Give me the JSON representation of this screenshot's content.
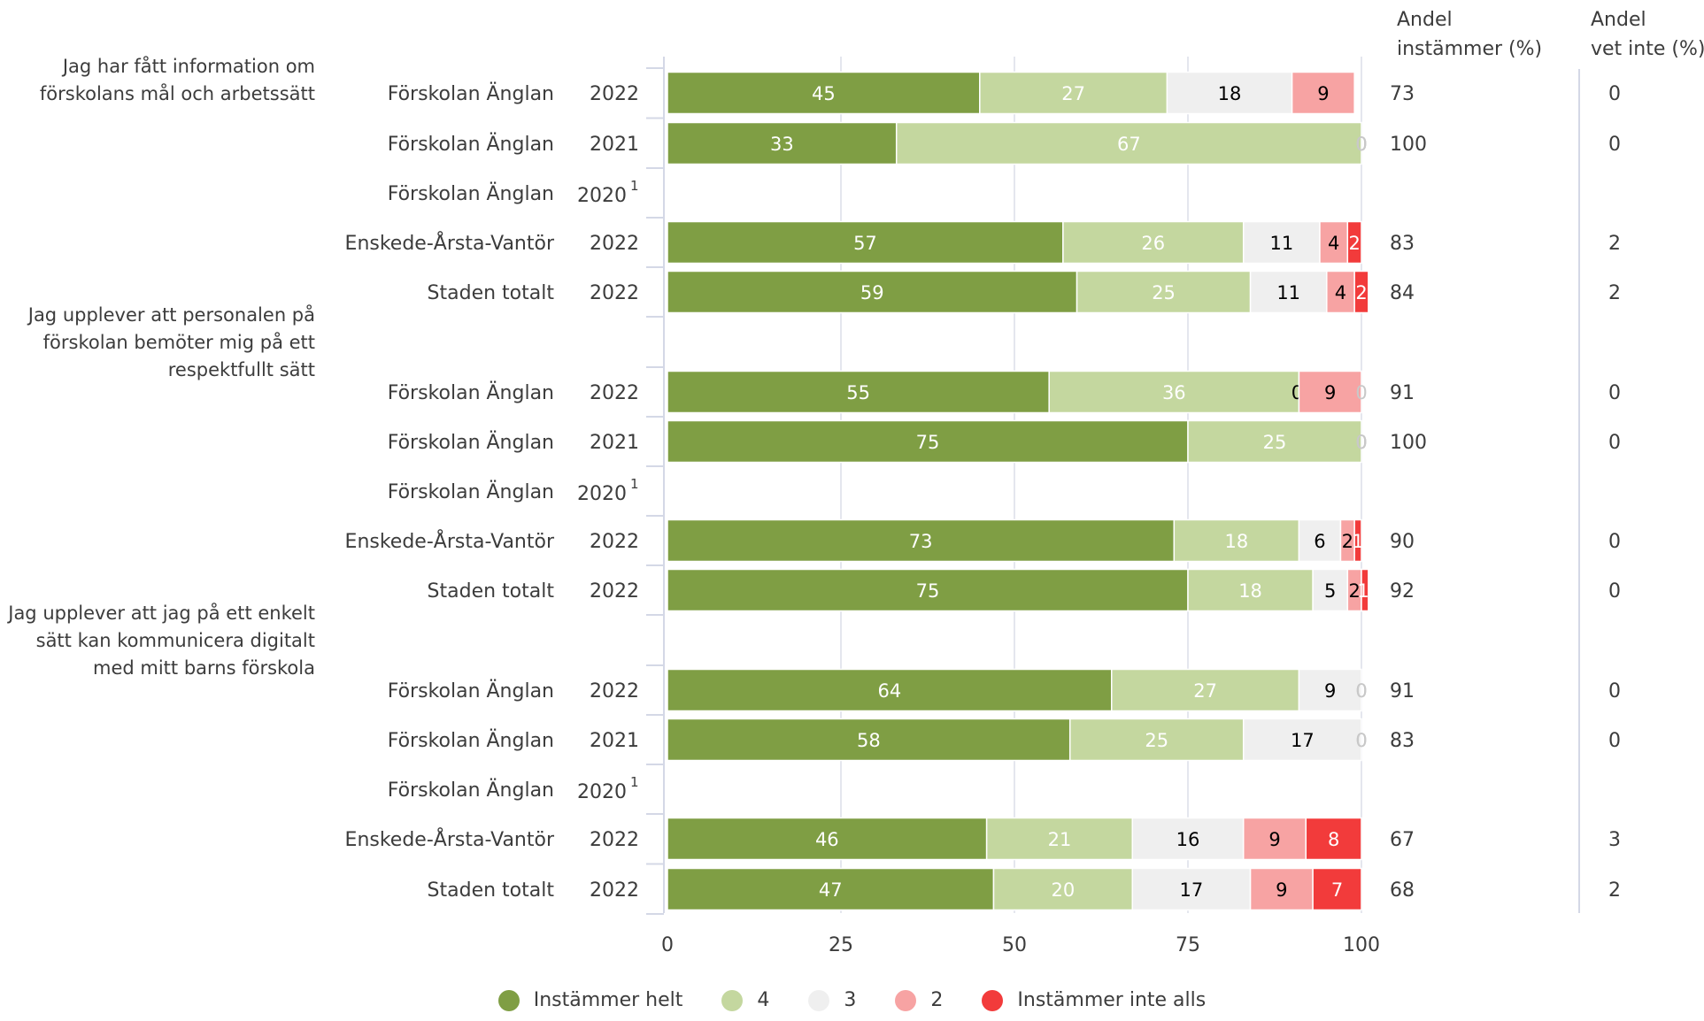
{
  "headers": {
    "andel_instammer": [
      "Andel",
      "instämmer (%)"
    ],
    "andel_vet_inte": [
      "Andel",
      "vet inte (%)"
    ]
  },
  "chart_data": {
    "type": "bar",
    "orientation": "horizontal",
    "stacked": true,
    "xlim": [
      0,
      100
    ],
    "xticks": [
      0,
      25,
      50,
      75,
      100
    ],
    "grid": true,
    "legend_position": "bottom",
    "series": [
      {
        "name": "Instämmer helt",
        "color": "#7f9e44"
      },
      {
        "name": "4",
        "color": "#c4d79f"
      },
      {
        "name": "3",
        "color": "#efefef"
      },
      {
        "name": "2",
        "color": "#f7a3a3"
      },
      {
        "name": "Instämmer inte alls",
        "color": "#f23b3b"
      }
    ],
    "groups": [
      {
        "question": [
          "Jag har fått information om",
          "förskolans mål och arbetssätt"
        ],
        "rows": [
          {
            "label": "Förskolan Änglan",
            "year": "2022",
            "footnote": "",
            "values": [
              45,
              27,
              18,
              9,
              0
            ],
            "andel_instammer": "73",
            "andel_vet_inte": "0"
          },
          {
            "label": "Förskolan Änglan",
            "year": "2021",
            "footnote": "",
            "values": [
              33,
              67,
              0,
              0,
              0
            ],
            "andel_instammer": "100",
            "andel_vet_inte": "0"
          },
          {
            "label": "Förskolan Änglan",
            "year": "2020",
            "footnote": "1",
            "values": null,
            "andel_instammer": "",
            "andel_vet_inte": ""
          },
          {
            "label": "Enskede-Årsta-Vantör",
            "year": "2022",
            "footnote": "",
            "values": [
              57,
              26,
              11,
              4,
              2
            ],
            "andel_instammer": "83",
            "andel_vet_inte": "2"
          },
          {
            "label": "Staden totalt",
            "year": "2022",
            "footnote": "",
            "values": [
              59,
              25,
              11,
              4,
              2
            ],
            "andel_instammer": "84",
            "andel_vet_inte": "2"
          }
        ]
      },
      {
        "question": [
          "Jag upplever att personalen på",
          "förskolan bemöter mig på ett",
          "respektfullt sätt"
        ],
        "rows": [
          {
            "label": "Förskolan Änglan",
            "year": "2022",
            "footnote": "",
            "values": [
              55,
              36,
              0,
              9,
              0
            ],
            "andel_instammer": "91",
            "andel_vet_inte": "0"
          },
          {
            "label": "Förskolan Änglan",
            "year": "2021",
            "footnote": "",
            "values": [
              75,
              25,
              0,
              0,
              0
            ],
            "andel_instammer": "100",
            "andel_vet_inte": "0"
          },
          {
            "label": "Förskolan Änglan",
            "year": "2020",
            "footnote": "1",
            "values": null,
            "andel_instammer": "",
            "andel_vet_inte": ""
          },
          {
            "label": "Enskede-Årsta-Vantör",
            "year": "2022",
            "footnote": "",
            "values": [
              73,
              18,
              6,
              2,
              1
            ],
            "andel_instammer": "90",
            "andel_vet_inte": "0"
          },
          {
            "label": "Staden totalt",
            "year": "2022",
            "footnote": "",
            "values": [
              75,
              18,
              5,
              2,
              1
            ],
            "andel_instammer": "92",
            "andel_vet_inte": "0"
          }
        ]
      },
      {
        "question": [
          "Jag upplever att jag på ett enkelt",
          "sätt kan kommunicera digitalt",
          "med mitt barns förskola"
        ],
        "rows": [
          {
            "label": "Förskolan Änglan",
            "year": "2022",
            "footnote": "",
            "values": [
              64,
              27,
              9,
              0,
              0
            ],
            "andel_instammer": "91",
            "andel_vet_inte": "0"
          },
          {
            "label": "Förskolan Änglan",
            "year": "2021",
            "footnote": "",
            "values": [
              58,
              25,
              17,
              0,
              0
            ],
            "andel_instammer": "83",
            "andel_vet_inte": "0"
          },
          {
            "label": "Förskolan Änglan",
            "year": "2020",
            "footnote": "1",
            "values": null,
            "andel_instammer": "",
            "andel_vet_inte": ""
          },
          {
            "label": "Enskede-Årsta-Vantör",
            "year": "2022",
            "footnote": "",
            "values": [
              46,
              21,
              16,
              9,
              8
            ],
            "andel_instammer": "67",
            "andel_vet_inte": "3"
          },
          {
            "label": "Staden totalt",
            "year": "2022",
            "footnote": "",
            "values": [
              47,
              20,
              17,
              9,
              7
            ],
            "andel_instammer": "68",
            "andel_vet_inte": "2"
          }
        ]
      }
    ]
  }
}
